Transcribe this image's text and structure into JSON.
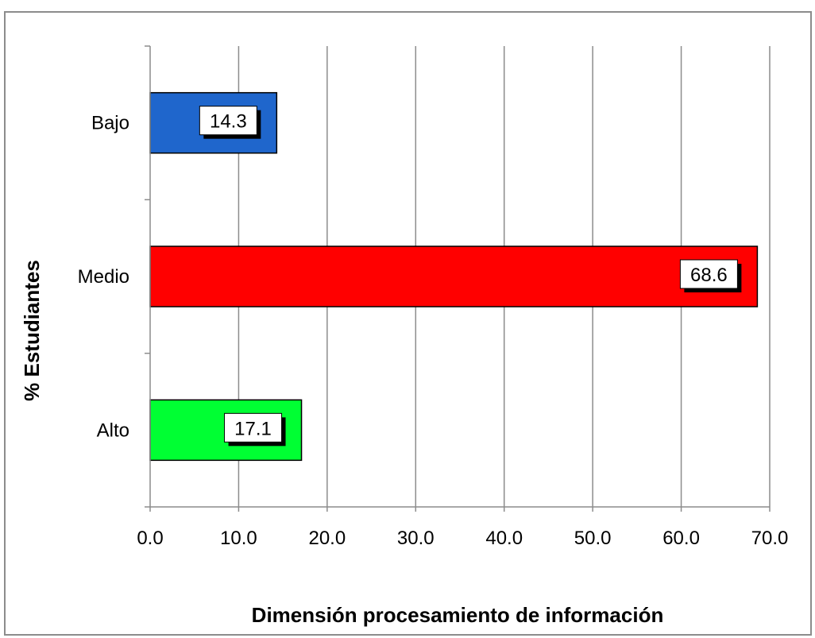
{
  "chart_data": {
    "type": "bar",
    "orientation": "horizontal",
    "categories": [
      "Bajo",
      "Medio",
      "Alto"
    ],
    "values": [
      14.3,
      68.6,
      17.1
    ],
    "value_labels": [
      "14.3",
      "68.6",
      "17.1"
    ],
    "colors": [
      "#1f66cc",
      "#ff0000",
      "#00ff33"
    ],
    "title": "",
    "xlabel": "Dimensión procesamiento de información",
    "ylabel": "% Estudiantes",
    "xlim": [
      0,
      70
    ],
    "xticks": [
      "0.0",
      "10.0",
      "20.0",
      "30.0",
      "40.0",
      "50.0",
      "60.0",
      "70.0"
    ],
    "grid": "vertical",
    "legend": "none"
  }
}
